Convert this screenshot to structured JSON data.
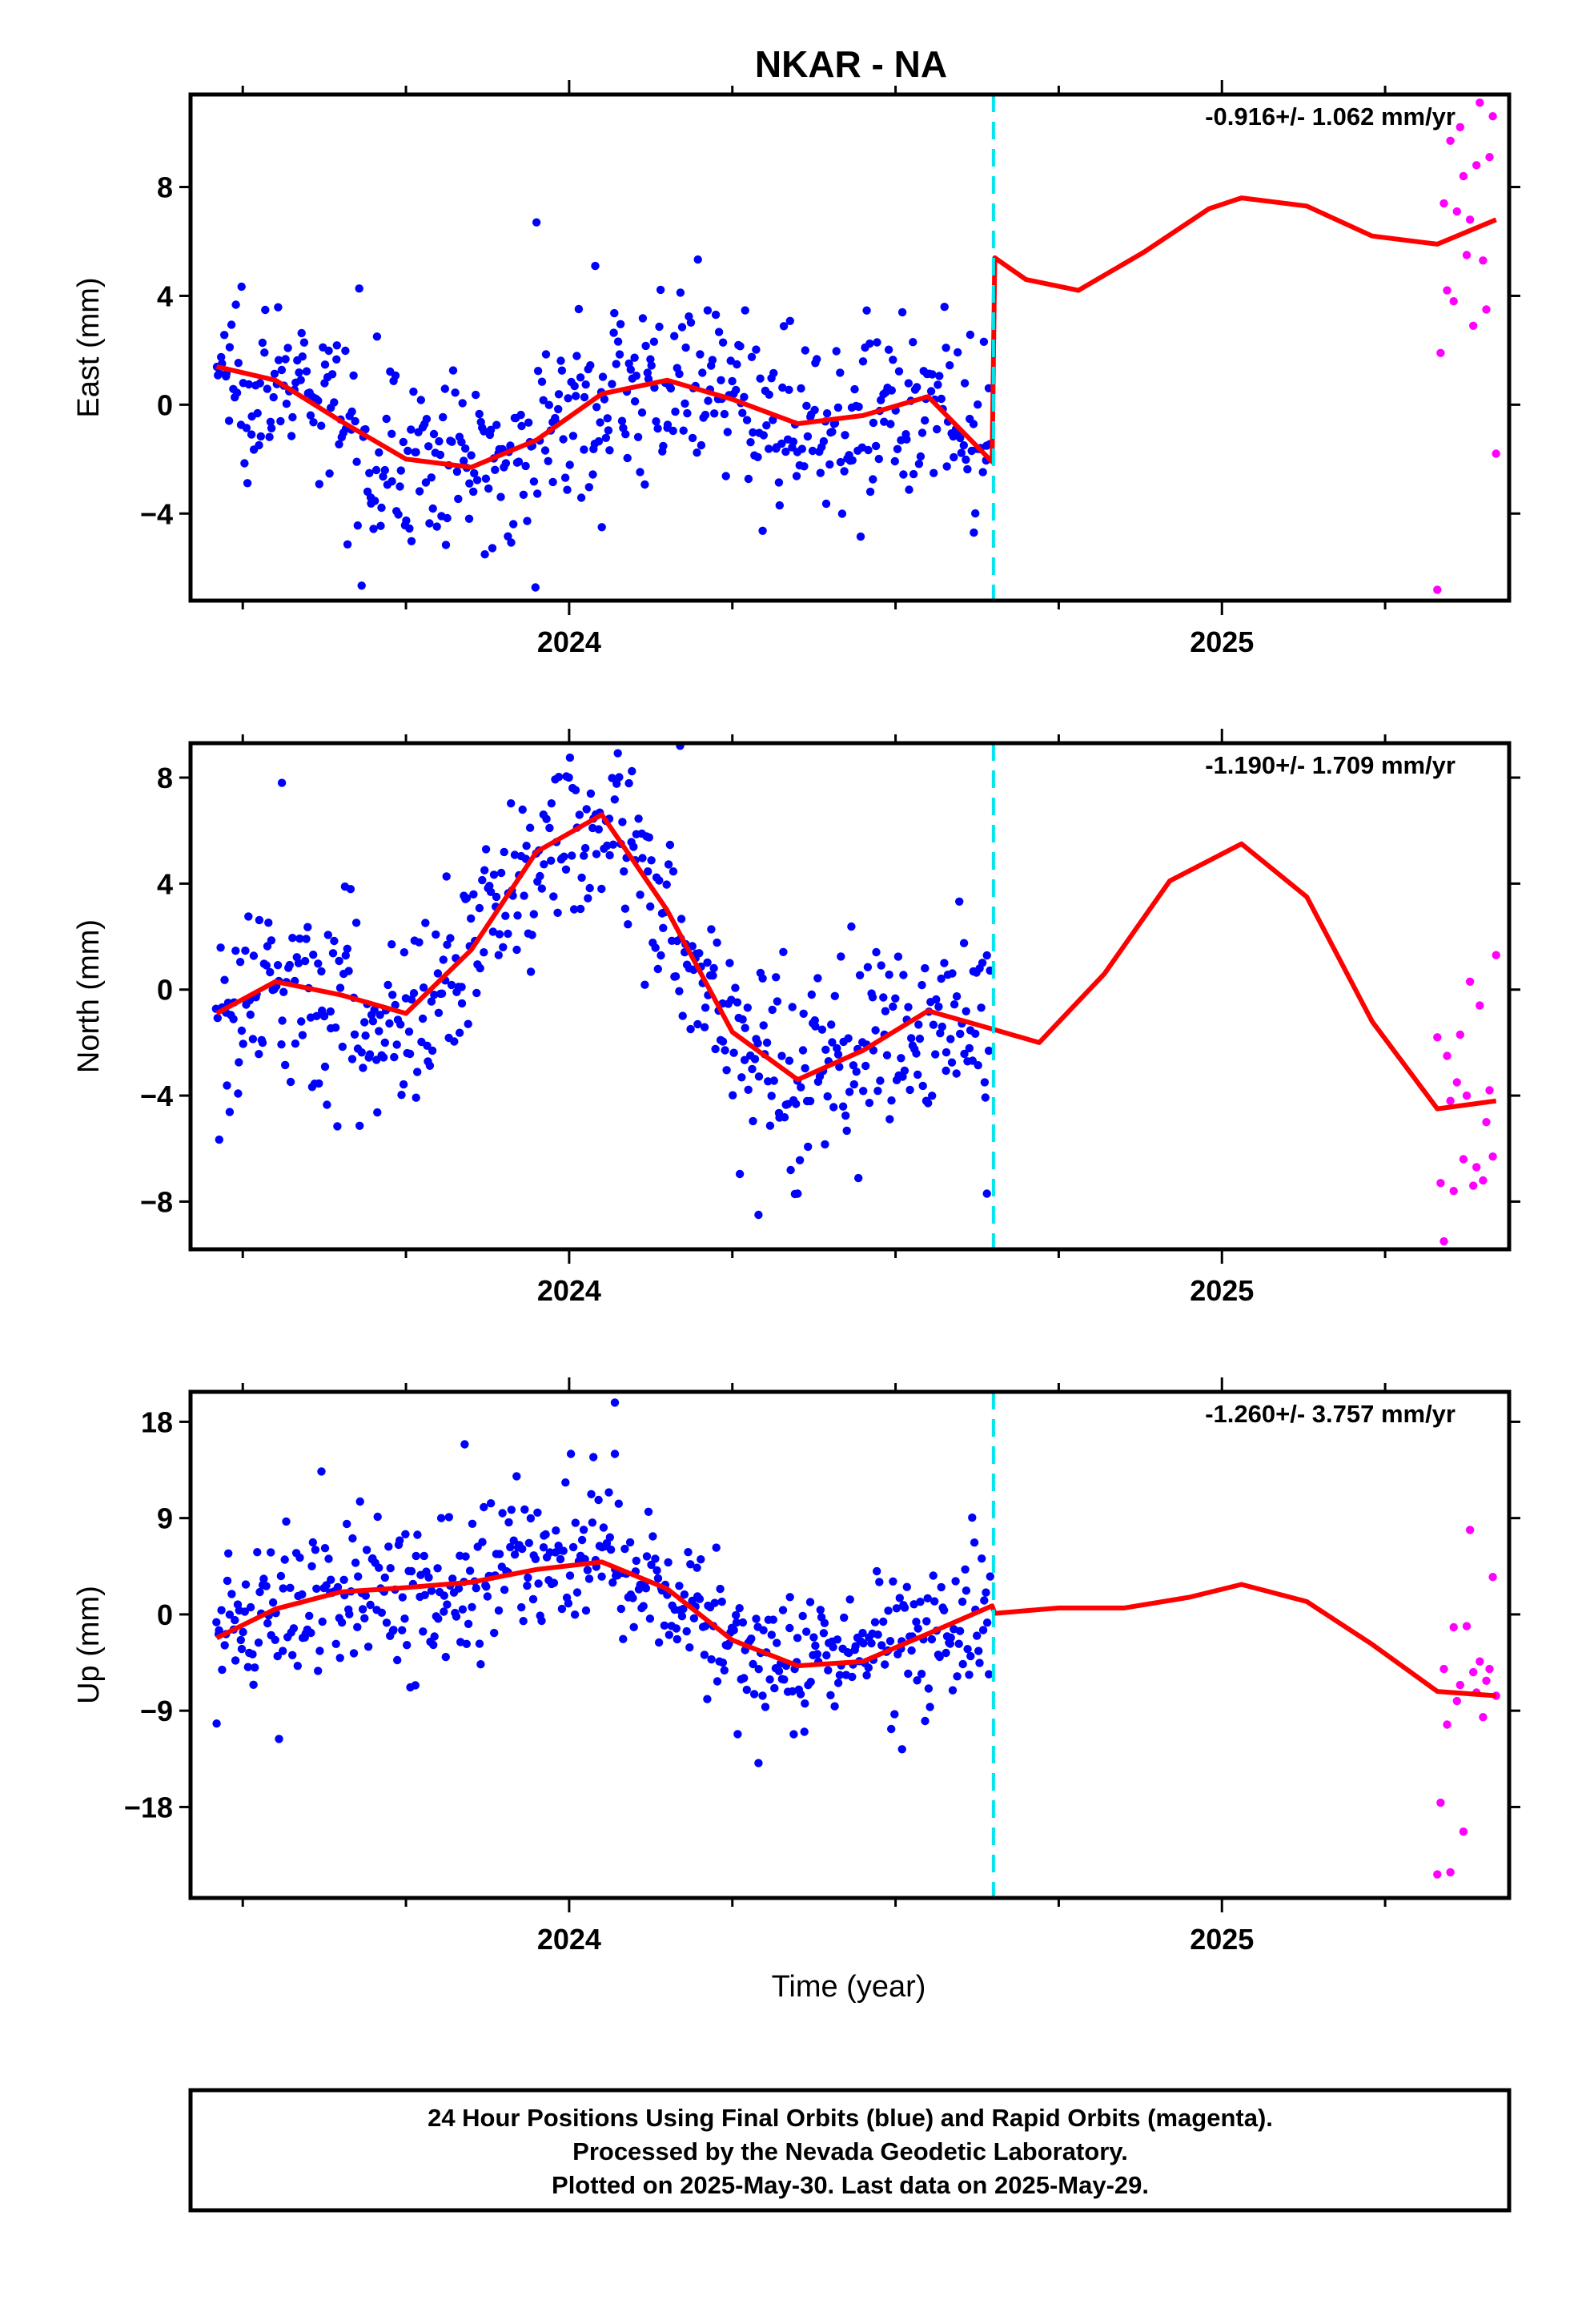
{
  "figure": {
    "title": "NKAR - NA",
    "xlabel": "Time (year)",
    "footer": [
      "24 Hour Positions Using Final Orbits (blue) and Rapid Orbits (magenta).",
      "Processed by the Nevada Geodetic Laboratory.",
      "Plotted on 2025-May-30. Last data on 2025-May-29."
    ]
  },
  "colors": {
    "final_orbits": "#0000ff",
    "rapid_orbits": "#ff00ff",
    "model": "#ff0000",
    "break_line": "#00e5ee"
  },
  "chart_data": [
    {
      "type": "scatter",
      "title": "",
      "xlabel": "",
      "ylabel": "East (mm)",
      "rate_label": "-0.916+/- 1.062 mm/yr",
      "xlim": [
        2023.42,
        2025.44
      ],
      "ylim": [
        -7.2,
        11.4
      ],
      "yticks": [
        -4,
        0,
        4,
        8
      ],
      "ytick_labels": [
        "−4",
        "0",
        "4",
        "8"
      ],
      "xticks": [
        2024,
        2025
      ],
      "xtick_labels": [
        "2024",
        "2025"
      ],
      "break_epoch": 2024.65,
      "final_orbits": {
        "x_range": [
          2023.46,
          2024.645
        ],
        "n": 520,
        "scatter": 1.6,
        "outliers": [
          [
            2023.95,
            6.7
          ],
          [
            2024.04,
            5.1
          ],
          [
            2024.62,
            -4.7
          ],
          [
            2024.05,
            -4.5
          ]
        ]
      },
      "rapid_orbits": {
        "x": [
          2025.33,
          2025.335,
          2025.34,
          2025.345,
          2025.35,
          2025.355,
          2025.36,
          2025.365,
          2025.37,
          2025.375,
          2025.38,
          2025.385,
          2025.39,
          2025.395,
          2025.4,
          2025.405,
          2025.41,
          2025.415,
          2025.42
        ],
        "y": [
          -6.8,
          1.9,
          7.4,
          4.2,
          9.7,
          3.8,
          7.1,
          10.2,
          8.4,
          5.5,
          6.8,
          2.9,
          8.8,
          11.1,
          5.3,
          3.5,
          9.1,
          10.6,
          -1.8
        ]
      },
      "model": {
        "x": [
          2023.46,
          2023.55,
          2023.65,
          2023.75,
          2023.85,
          2023.95,
          2024.05,
          2024.15,
          2024.25,
          2024.35,
          2024.45,
          2024.55,
          2024.648,
          2024.652,
          2024.7,
          2024.78,
          2024.88,
          2024.98,
          2025.03,
          2025.13,
          2025.23,
          2025.33,
          2025.42
        ],
        "y": [
          1.4,
          0.9,
          -0.6,
          -2.0,
          -2.3,
          -1.3,
          0.4,
          0.9,
          0.2,
          -0.7,
          -0.4,
          0.3,
          -2.1,
          5.4,
          4.6,
          4.2,
          5.6,
          7.2,
          7.6,
          7.3,
          6.2,
          5.9,
          6.8
        ]
      }
    },
    {
      "type": "scatter",
      "title": "",
      "xlabel": "",
      "ylabel": "North (mm)",
      "rate_label": "-1.190+/- 1.709 mm/yr",
      "xlim": [
        2023.42,
        2025.44
      ],
      "ylim": [
        -9.8,
        9.3
      ],
      "yticks": [
        -8,
        -4,
        0,
        4,
        8
      ],
      "ytick_labels": [
        "−8",
        "−4",
        "0",
        "4",
        "8"
      ],
      "xticks": [
        2024,
        2025
      ],
      "xtick_labels": [
        "2024",
        "2025"
      ],
      "break_epoch": 2024.65,
      "final_orbits": {
        "x_range": [
          2023.46,
          2024.645
        ],
        "n": 520,
        "scatter": 1.8,
        "outliers": [
          [
            2023.56,
            7.8
          ],
          [
            2024.17,
            9.2
          ],
          [
            2024.29,
            -8.5
          ],
          [
            2024.35,
            -7.7
          ],
          [
            2024.64,
            -7.7
          ]
        ]
      },
      "rapid_orbits": {
        "x": [
          2025.33,
          2025.335,
          2025.34,
          2025.345,
          2025.35,
          2025.355,
          2025.36,
          2025.365,
          2025.37,
          2025.375,
          2025.38,
          2025.385,
          2025.39,
          2025.395,
          2025.4,
          2025.405,
          2025.41,
          2025.415,
          2025.42
        ],
        "y": [
          -1.8,
          -7.3,
          -9.5,
          -2.5,
          -4.2,
          -7.6,
          -3.5,
          -1.7,
          -6.4,
          -4.0,
          0.3,
          -7.4,
          -6.7,
          -0.6,
          -7.2,
          -5.0,
          -3.8,
          -6.3,
          1.3
        ]
      },
      "model": {
        "x": [
          2023.46,
          2023.55,
          2023.65,
          2023.75,
          2023.85,
          2023.95,
          2024.05,
          2024.15,
          2024.25,
          2024.35,
          2024.45,
          2024.55,
          2024.65,
          2024.72,
          2024.82,
          2024.92,
          2025.03,
          2025.13,
          2025.23,
          2025.33,
          2025.42
        ],
        "y": [
          -0.9,
          0.3,
          -0.2,
          -0.9,
          1.5,
          5.2,
          6.6,
          3.0,
          -1.6,
          -3.4,
          -2.3,
          -0.8,
          -1.5,
          -2.0,
          0.6,
          4.1,
          5.5,
          3.5,
          -1.2,
          -4.5,
          -4.2
        ]
      }
    },
    {
      "type": "scatter",
      "title": "",
      "xlabel": "Time (year)",
      "ylabel": "Up (mm)",
      "rate_label": "-1.260+/- 3.757 mm/yr",
      "xlim": [
        2023.42,
        2025.44
      ],
      "ylim": [
        -26.5,
        20.8
      ],
      "yticks": [
        -18,
        -9,
        0,
        9,
        18
      ],
      "ytick_labels": [
        "−18",
        "−9",
        "0",
        "9",
        "18"
      ],
      "xticks": [
        2024,
        2025
      ],
      "xtick_labels": [
        "2024",
        "2025"
      ],
      "break_epoch": 2024.65,
      "final_orbits": {
        "x_range": [
          2023.46,
          2024.645
        ],
        "n": 520,
        "scatter": 3.4,
        "outliers": [
          [
            2024.07,
            19.8
          ],
          [
            2023.84,
            15.9
          ],
          [
            2024.07,
            15.0
          ],
          [
            2024.29,
            -13.9
          ],
          [
            2024.51,
            -12.6
          ],
          [
            2023.46,
            -10.2
          ]
        ]
      },
      "rapid_orbits": {
        "x": [
          2025.33,
          2025.335,
          2025.34,
          2025.345,
          2025.35,
          2025.355,
          2025.36,
          2025.365,
          2025.37,
          2025.375,
          2025.38,
          2025.385,
          2025.39,
          2025.395,
          2025.4,
          2025.405,
          2025.41,
          2025.415,
          2025.42
        ],
        "y": [
          -24.3,
          -17.6,
          -5.1,
          -10.3,
          -24.1,
          -1.2,
          -8.1,
          -6.6,
          -20.3,
          -1.1,
          7.9,
          -5.4,
          -7.3,
          -4.4,
          -9.6,
          -6.2,
          -5.1,
          3.5,
          -7.6
        ]
      },
      "model": {
        "x": [
          2023.46,
          2023.55,
          2023.65,
          2023.75,
          2023.85,
          2023.95,
          2024.05,
          2024.15,
          2024.25,
          2024.35,
          2024.45,
          2024.55,
          2024.648,
          2024.652,
          2024.75,
          2024.85,
          2024.95,
          2025.03,
          2025.13,
          2025.23,
          2025.33,
          2025.42
        ],
        "y": [
          -2.2,
          0.5,
          2.1,
          2.5,
          3.0,
          4.2,
          4.9,
          2.4,
          -2.4,
          -4.8,
          -4.4,
          -1.8,
          0.8,
          0.1,
          0.6,
          0.6,
          1.6,
          2.8,
          1.2,
          -2.8,
          -7.2,
          -7.6
        ]
      }
    }
  ]
}
